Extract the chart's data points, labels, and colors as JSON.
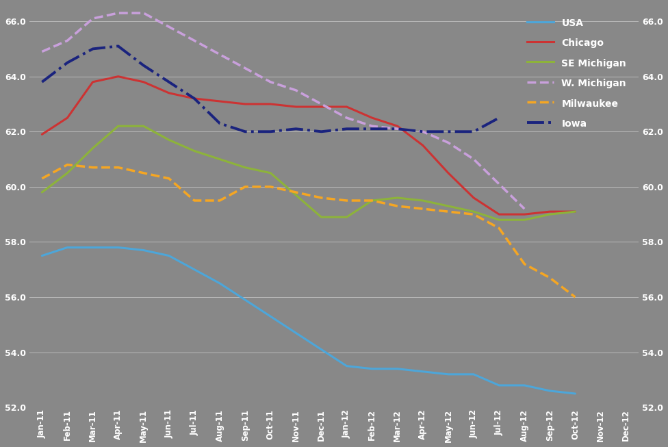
{
  "x_labels": [
    "Jan-11",
    "Feb-11",
    "Mar-11",
    "Apr-11",
    "May-11",
    "Jun-11",
    "Jul-11",
    "Aug-11",
    "Sep-11",
    "Oct-11",
    "Nov-11",
    "Dec-11",
    "Jan-12",
    "Feb-12",
    "Mar-12",
    "Apr-12",
    "May-12",
    "Jun-12",
    "Jul-12",
    "Aug-12",
    "Sep-12",
    "Oct-12",
    "Nov-12",
    "Dec-12"
  ],
  "USA": [
    57.5,
    57.8,
    57.8,
    57.8,
    57.7,
    57.5,
    57.0,
    56.5,
    55.9,
    55.3,
    54.7,
    54.1,
    53.5,
    53.4,
    53.4,
    53.3,
    53.2,
    53.2,
    52.8,
    52.8,
    52.6,
    52.5,
    null,
    null
  ],
  "Chicago": [
    61.9,
    62.5,
    63.8,
    64.0,
    63.8,
    63.4,
    63.2,
    63.1,
    63.0,
    63.0,
    62.9,
    62.9,
    62.9,
    62.5,
    62.2,
    61.5,
    60.5,
    59.6,
    59.0,
    59.0,
    59.1,
    59.1,
    null,
    null
  ],
  "SE_Michigan": [
    59.8,
    60.5,
    61.4,
    62.2,
    62.2,
    61.7,
    61.3,
    61.0,
    60.7,
    60.5,
    59.7,
    58.9,
    58.9,
    59.5,
    59.6,
    59.5,
    59.3,
    59.1,
    58.8,
    58.8,
    59.0,
    59.1,
    null,
    null
  ],
  "W_Michigan": [
    64.9,
    65.3,
    66.1,
    66.3,
    66.3,
    65.8,
    65.3,
    64.8,
    64.3,
    63.8,
    63.5,
    63.0,
    62.5,
    62.2,
    62.1,
    62.0,
    61.6,
    61.0,
    60.1,
    59.2,
    null,
    null,
    null,
    null
  ],
  "Milwaukee": [
    60.3,
    60.8,
    60.7,
    60.7,
    60.5,
    60.3,
    59.5,
    59.5,
    60.0,
    60.0,
    59.8,
    59.6,
    59.5,
    59.5,
    59.3,
    59.2,
    59.1,
    59.0,
    58.5,
    57.2,
    56.7,
    56.0,
    null,
    null
  ],
  "Iowa": [
    63.8,
    64.5,
    65.0,
    65.1,
    64.4,
    63.8,
    63.2,
    62.3,
    62.0,
    62.0,
    62.1,
    62.0,
    62.1,
    62.1,
    62.1,
    62.0,
    62.0,
    62.0,
    62.5,
    null,
    null,
    null,
    null,
    null
  ],
  "background_color": "#888888",
  "color_USA": "#4da6d9",
  "color_Chicago": "#cc3333",
  "color_SE_Michigan": "#8db33a",
  "color_W_Michigan": "#c9a0dc",
  "color_Milwaukee": "#f5a623",
  "color_Iowa": "#1a237e",
  "ylim_min": 52.0,
  "ylim_max": 66.6,
  "yticks": [
    52.0,
    54.0,
    56.0,
    58.0,
    60.0,
    62.0,
    64.0,
    66.0
  ],
  "legend_labels": [
    "USA",
    "Chicago",
    "SE Michigan",
    "W. Michigan",
    "Milwaukee",
    "Iowa"
  ],
  "legend_colors": [
    "#4da6d9",
    "#cc3333",
    "#8db33a",
    "#c9a0dc",
    "#f5a623",
    "#1a237e"
  ],
  "legend_styles": [
    "-",
    "-",
    "-",
    "--",
    "--",
    "-."
  ]
}
